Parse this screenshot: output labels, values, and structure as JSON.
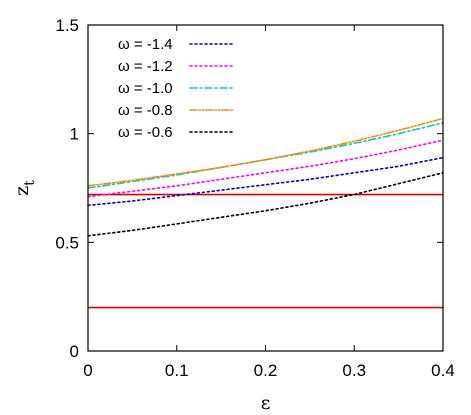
{
  "chart_data": {
    "type": "line",
    "xlabel": "ε",
    "ylabel": "z",
    "ylabel_subscript": "t",
    "xlim": [
      0,
      0.4
    ],
    "ylim": [
      0,
      1.5
    ],
    "x_ticks": [
      0,
      0.1,
      0.2,
      0.3,
      0.4
    ],
    "x_tick_labels": [
      "0",
      "0.1",
      "0.2",
      "0.3",
      "0.4"
    ],
    "y_ticks": [
      0,
      0.5,
      1,
      1.5
    ],
    "y_tick_labels": [
      "0",
      "0.5",
      "1",
      "1.5"
    ],
    "grid": false,
    "legend_position": "top-left",
    "series": [
      {
        "name": "ω = -1.4",
        "color": "#0000cc",
        "dash": "dot",
        "x": [
          0,
          0.05,
          0.1,
          0.15,
          0.2,
          0.25,
          0.3,
          0.35,
          0.4
        ],
        "y": [
          0.67,
          0.69,
          0.715,
          0.74,
          0.765,
          0.79,
          0.82,
          0.85,
          0.89
        ]
      },
      {
        "name": "ω = -1.2",
        "color": "#ff00ff",
        "dash": "dot",
        "x": [
          0,
          0.05,
          0.1,
          0.15,
          0.2,
          0.25,
          0.3,
          0.35,
          0.4
        ],
        "y": [
          0.71,
          0.735,
          0.76,
          0.79,
          0.82,
          0.85,
          0.885,
          0.925,
          0.97
        ]
      },
      {
        "name": "ω = -1.0",
        "color": "#00cccc",
        "dash": "dashdot",
        "x": [
          0,
          0.05,
          0.1,
          0.15,
          0.2,
          0.25,
          0.3,
          0.35,
          0.4
        ],
        "y": [
          0.75,
          0.78,
          0.81,
          0.845,
          0.88,
          0.915,
          0.955,
          1.0,
          1.05
        ]
      },
      {
        "name": "ω = -0.8",
        "color": "#ff8c00",
        "dash": "dashdotdot",
        "x": [
          0,
          0.05,
          0.1,
          0.15,
          0.2,
          0.25,
          0.3,
          0.35,
          0.4
        ],
        "y": [
          0.76,
          0.785,
          0.815,
          0.845,
          0.88,
          0.92,
          0.965,
          1.015,
          1.07
        ]
      },
      {
        "name": "ω = -0.6",
        "color": "#000000",
        "dash": "dot",
        "x": [
          0,
          0.05,
          0.1,
          0.15,
          0.2,
          0.25,
          0.3,
          0.35,
          0.4
        ],
        "y": [
          0.53,
          0.555,
          0.585,
          0.615,
          0.645,
          0.68,
          0.72,
          0.77,
          0.82
        ]
      }
    ],
    "hlines": [
      {
        "y": 0.72,
        "color": "#dd0000"
      },
      {
        "y": 0.2,
        "color": "#dd0000"
      }
    ]
  }
}
